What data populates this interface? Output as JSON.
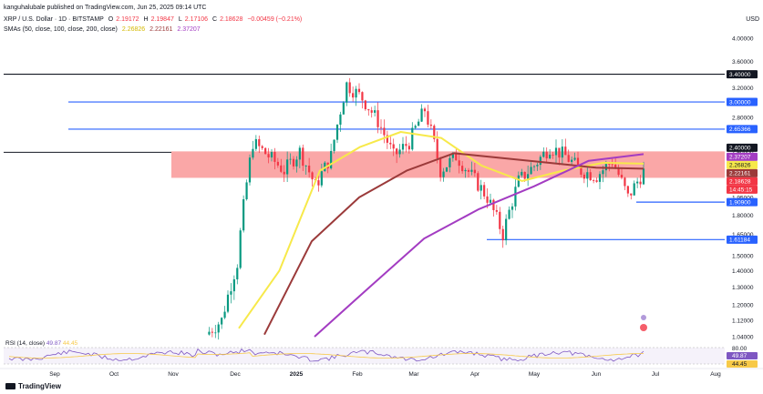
{
  "header": {
    "publisher": "kanguhalubale published on TradingView.com, Jun 25, 2025 09:14 UTC",
    "symbol": "XRP / U.S. Dollar · 1D · BITSTAMP",
    "ohlc": {
      "o_label": "O",
      "o": "2.19172",
      "h_label": "H",
      "h": "2.19847",
      "l_label": "L",
      "l": "2.17106",
      "c_label": "C",
      "c": "2.18628",
      "change": "−0.00459 (−0.21%)"
    },
    "sma_label": "SMAs (50, close, 100, close, 200, close)",
    "sma_values": [
      "2.26826",
      "2.22161",
      "2.37207"
    ],
    "currency": "USD"
  },
  "rsi": {
    "label": "RSI (14, close)",
    "value1": "49.87",
    "value2": "44.45"
  },
  "footer": {
    "brand": "TradingView"
  },
  "colors": {
    "up": "#089981",
    "down": "#f23645",
    "sma50": "#f7e94a",
    "sma100": "#9b3a3a",
    "sma200": "#a33cc2",
    "zone": "#f88a8a",
    "blue_line": "#2962ff",
    "black_line": "#131722"
  },
  "chart_data": {
    "type": "candlestick",
    "title": "XRP / U.S. Dollar · 1D · BITSTAMP",
    "y_scale": "log",
    "y_ticks": [
      "4.00000",
      "3.60000",
      "3.20000",
      "2.80000",
      "2.40000",
      "1.95000",
      "1.80000",
      "1.65000",
      "1.50000",
      "1.40000",
      "1.30000",
      "1.20000",
      "1.12000",
      "1.04000"
    ],
    "x_ticks": [
      "Sep",
      "Oct",
      "Nov",
      "Dec",
      "2025",
      "Feb",
      "Mar",
      "Apr",
      "May",
      "Jun",
      "Jul",
      "Aug"
    ],
    "rsi_ticks": [
      "80.00"
    ],
    "horizontal_levels": [
      {
        "value": 3.4,
        "color": "#131722",
        "label": "3.40000"
      },
      {
        "value": 3.0,
        "color": "#2962ff",
        "label": "3.00000"
      },
      {
        "value": 2.65366,
        "color": "#2962ff",
        "label": "2.65366"
      },
      {
        "value": 1.909,
        "color": "#2962ff",
        "label": "1.90900"
      },
      {
        "value": 1.61184,
        "color": "#2962ff",
        "label": "1.61184"
      }
    ],
    "price_tags": [
      {
        "value": 2.4,
        "label": "2.40000",
        "bg": "#131722",
        "fg": "#ffffff"
      },
      {
        "value": 2.37207,
        "label": "2.37207",
        "bg": "#a33cc2",
        "fg": "#ffffff"
      },
      {
        "value": 2.26826,
        "label": "2.26826",
        "bg": "#f7e94a",
        "fg": "#131722"
      },
      {
        "value": 2.22161,
        "label": "2.22161",
        "bg": "#9b3a3a",
        "fg": "#ffffff"
      },
      {
        "value": 2.18628,
        "label": "2.18628",
        "bg": "#f23645",
        "fg": "#ffffff"
      },
      {
        "value": 2.18628,
        "label": "14:45:15",
        "bg": "#f23645",
        "fg": "#ffffff"
      }
    ],
    "resistance_zone": {
      "from": 2.13,
      "to": 2.4
    },
    "series": [
      {
        "name": "SMA 50",
        "color": "#f7e94a",
        "points": [
          [
            "Dec",
            1.08
          ],
          [
            "Dec",
            1.4
          ],
          [
            "Jan",
            2.2
          ],
          [
            "2025",
            2.45
          ],
          [
            "Feb",
            2.62
          ],
          [
            "Mar",
            2.55
          ],
          [
            "Mar",
            2.25
          ],
          [
            "Apr",
            2.1
          ],
          [
            "May",
            2.2
          ],
          [
            "Jun",
            2.28
          ],
          [
            "Jun",
            2.27
          ]
        ]
      },
      {
        "name": "SMA 100",
        "color": "#9b3a3a",
        "points": [
          [
            "Dec",
            1.05
          ],
          [
            "Jan",
            1.6
          ],
          [
            "2025",
            1.95
          ],
          [
            "Feb",
            2.2
          ],
          [
            "Mar",
            2.38
          ],
          [
            "Apr",
            2.33
          ],
          [
            "May",
            2.28
          ],
          [
            "Jun",
            2.23
          ],
          [
            "Jun",
            2.22
          ]
        ]
      },
      {
        "name": "SMA 200",
        "color": "#a33cc2",
        "points": [
          [
            "Jan",
            1.04
          ],
          [
            "Feb",
            1.3
          ],
          [
            "Mar",
            1.62
          ],
          [
            "Apr",
            1.85
          ],
          [
            "May",
            2.05
          ],
          [
            "Jun",
            2.3
          ],
          [
            "Jun",
            2.37
          ]
        ]
      }
    ],
    "candles_close_path": [
      [
        "Nov",
        1.05
      ],
      [
        "Nov",
        1.12
      ],
      [
        "Dec",
        1.45
      ],
      [
        "Dec",
        2.5
      ],
      [
        "Dec",
        2.35
      ],
      [
        "Dec",
        2.2
      ],
      [
        "Jan",
        2.4
      ],
      [
        "Jan",
        2.05
      ],
      [
        "2025",
        2.35
      ],
      [
        "2025",
        3.25
      ],
      [
        "2025",
        3.05
      ],
      [
        "Feb",
        2.75
      ],
      [
        "Feb",
        2.35
      ],
      [
        "Feb",
        2.5
      ],
      [
        "Mar",
        2.9
      ],
      [
        "Mar",
        2.2
      ],
      [
        "Mar",
        2.35
      ],
      [
        "Mar",
        2.15
      ],
      [
        "Apr",
        1.95
      ],
      [
        "Apr",
        1.65
      ],
      [
        "Apr",
        2.1
      ],
      [
        "May",
        2.25
      ],
      [
        "May",
        2.45
      ],
      [
        "May",
        2.35
      ],
      [
        "Jun",
        2.2
      ],
      [
        "Jun",
        2.15
      ],
      [
        "Jun",
        2.3
      ],
      [
        "Jun",
        1.95
      ],
      [
        "Jun",
        2.19
      ]
    ]
  }
}
